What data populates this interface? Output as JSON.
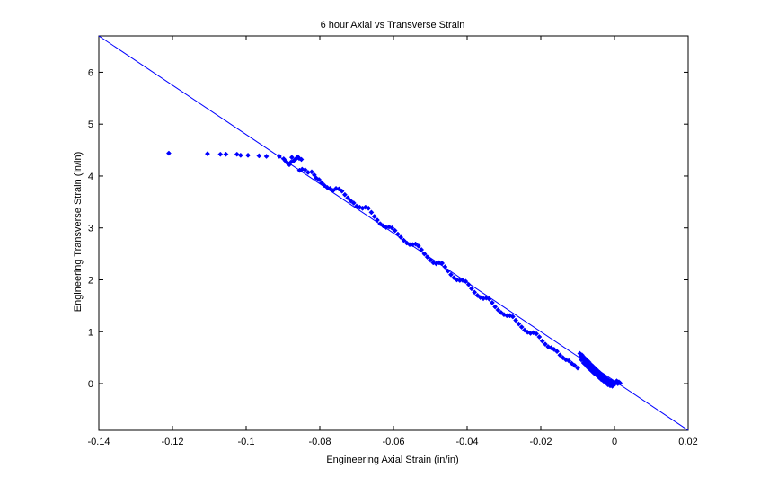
{
  "chart_data": {
    "type": "scatter",
    "title": "6 hour Axial vs Transverse Strain",
    "xlabel": "Engineering Axial Strain (in/in)",
    "ylabel": "Engineering Transverse Strain (in/in)",
    "xlim": [
      -0.14,
      0.02
    ],
    "ylim": [
      -0.9,
      6.7
    ],
    "xticks": [
      "-0.14",
      "-0.12",
      "-0.1",
      "-0.08",
      "-0.06",
      "-0.04",
      "-0.02",
      "0",
      "0.02"
    ],
    "yticks": [
      "0",
      "1",
      "2",
      "3",
      "4",
      "5",
      "6"
    ],
    "grid": false,
    "marker_color": "#0000ff",
    "fit_line": {
      "x": [
        -0.14,
        0.02
      ],
      "y": [
        6.7,
        -0.9
      ],
      "color": "#0000ff"
    },
    "series": [
      {
        "points": [
          [
            -0.121,
            4.44
          ],
          [
            -0.1105,
            4.43
          ],
          [
            -0.107,
            4.42
          ],
          [
            -0.1055,
            4.42
          ],
          [
            -0.1025,
            4.42
          ],
          [
            -0.1015,
            4.4
          ],
          [
            -0.0995,
            4.4
          ],
          [
            -0.0965,
            4.39
          ],
          [
            -0.0945,
            4.38
          ],
          [
            -0.091,
            4.38
          ],
          [
            -0.0898,
            4.33
          ],
          [
            -0.0893,
            4.29
          ],
          [
            -0.0888,
            4.25
          ],
          [
            -0.0883,
            4.22
          ],
          [
            -0.0878,
            4.27
          ],
          [
            -0.0876,
            4.36
          ],
          [
            -0.087,
            4.3
          ],
          [
            -0.0865,
            4.33
          ],
          [
            -0.086,
            4.37
          ],
          [
            -0.0856,
            4.34
          ],
          [
            -0.085,
            4.32
          ],
          [
            -0.0855,
            4.11
          ],
          [
            -0.0848,
            4.13
          ],
          [
            -0.084,
            4.12
          ],
          [
            -0.0832,
            4.07
          ],
          [
            -0.0822,
            4.08
          ],
          [
            -0.0815,
            4.02
          ],
          [
            -0.081,
            3.96
          ],
          [
            -0.0802,
            3.93
          ],
          [
            -0.0795,
            3.87
          ],
          [
            -0.0788,
            3.82
          ],
          [
            -0.078,
            3.78
          ],
          [
            -0.0772,
            3.76
          ],
          [
            -0.0764,
            3.72
          ],
          [
            -0.0756,
            3.76
          ],
          [
            -0.0748,
            3.75
          ],
          [
            -0.074,
            3.71
          ],
          [
            -0.0732,
            3.64
          ],
          [
            -0.0724,
            3.58
          ],
          [
            -0.0716,
            3.52
          ],
          [
            -0.0708,
            3.48
          ],
          [
            -0.07,
            3.42
          ],
          [
            -0.0692,
            3.4
          ],
          [
            -0.0684,
            3.38
          ],
          [
            -0.0676,
            3.4
          ],
          [
            -0.0668,
            3.38
          ],
          [
            -0.066,
            3.3
          ],
          [
            -0.0652,
            3.22
          ],
          [
            -0.0644,
            3.15
          ],
          [
            -0.0636,
            3.08
          ],
          [
            -0.0628,
            3.04
          ],
          [
            -0.062,
            3.01
          ],
          [
            -0.0612,
            3.02
          ],
          [
            -0.0604,
            3.0
          ],
          [
            -0.0596,
            2.95
          ],
          [
            -0.0588,
            2.88
          ],
          [
            -0.058,
            2.82
          ],
          [
            -0.0572,
            2.76
          ],
          [
            -0.0564,
            2.71
          ],
          [
            -0.0556,
            2.68
          ],
          [
            -0.0548,
            2.68
          ],
          [
            -0.054,
            2.69
          ],
          [
            -0.0532,
            2.65
          ],
          [
            -0.0524,
            2.58
          ],
          [
            -0.0516,
            2.5
          ],
          [
            -0.0508,
            2.44
          ],
          [
            -0.05,
            2.38
          ],
          [
            -0.0492,
            2.33
          ],
          [
            -0.0484,
            2.31
          ],
          [
            -0.0476,
            2.33
          ],
          [
            -0.0468,
            2.32
          ],
          [
            -0.046,
            2.25
          ],
          [
            -0.0452,
            2.17
          ],
          [
            -0.0444,
            2.1
          ],
          [
            -0.0436,
            2.04
          ],
          [
            -0.0428,
            2.0
          ],
          [
            -0.042,
            1.99
          ],
          [
            -0.0412,
            1.99
          ],
          [
            -0.0404,
            1.97
          ],
          [
            -0.0396,
            1.91
          ],
          [
            -0.0388,
            1.83
          ],
          [
            -0.038,
            1.76
          ],
          [
            -0.0372,
            1.7
          ],
          [
            -0.0364,
            1.66
          ],
          [
            -0.0356,
            1.64
          ],
          [
            -0.0348,
            1.65
          ],
          [
            -0.034,
            1.63
          ],
          [
            -0.0332,
            1.56
          ],
          [
            -0.0324,
            1.48
          ],
          [
            -0.0316,
            1.42
          ],
          [
            -0.0308,
            1.37
          ],
          [
            -0.03,
            1.33
          ],
          [
            -0.0292,
            1.31
          ],
          [
            -0.0284,
            1.31
          ],
          [
            -0.0276,
            1.29
          ],
          [
            -0.0268,
            1.22
          ],
          [
            -0.026,
            1.15
          ],
          [
            -0.0252,
            1.09
          ],
          [
            -0.0244,
            1.03
          ],
          [
            -0.0236,
            0.99
          ],
          [
            -0.0228,
            0.97
          ],
          [
            -0.022,
            0.98
          ],
          [
            -0.0212,
            0.96
          ],
          [
            -0.0204,
            0.9
          ],
          [
            -0.0196,
            0.82
          ],
          [
            -0.0188,
            0.76
          ],
          [
            -0.018,
            0.71
          ],
          [
            -0.0172,
            0.69
          ],
          [
            -0.0164,
            0.66
          ],
          [
            -0.0156,
            0.62
          ],
          [
            -0.0148,
            0.55
          ],
          [
            -0.014,
            0.5
          ],
          [
            -0.0132,
            0.46
          ],
          [
            -0.0124,
            0.44
          ],
          [
            -0.0116,
            0.39
          ],
          [
            -0.0108,
            0.35
          ],
          [
            -0.01,
            0.3
          ],
          [
            -0.0094,
            0.58
          ],
          [
            -0.0092,
            0.52
          ],
          [
            -0.009,
            0.46
          ],
          [
            -0.0088,
            0.55
          ],
          [
            -0.0086,
            0.48
          ],
          [
            -0.0084,
            0.4
          ],
          [
            -0.0082,
            0.5
          ],
          [
            -0.008,
            0.43
          ],
          [
            -0.0078,
            0.36
          ],
          [
            -0.0076,
            0.46
          ],
          [
            -0.0074,
            0.38
          ],
          [
            -0.0072,
            0.31
          ],
          [
            -0.007,
            0.42
          ],
          [
            -0.0068,
            0.34
          ],
          [
            -0.0066,
            0.27
          ],
          [
            -0.0064,
            0.37
          ],
          [
            -0.0062,
            0.3
          ],
          [
            -0.006,
            0.23
          ],
          [
            -0.0058,
            0.33
          ],
          [
            -0.0056,
            0.26
          ],
          [
            -0.0054,
            0.19
          ],
          [
            -0.0052,
            0.29
          ],
          [
            -0.005,
            0.22
          ],
          [
            -0.0048,
            0.16
          ],
          [
            -0.0046,
            0.25
          ],
          [
            -0.0044,
            0.18
          ],
          [
            -0.0042,
            0.12
          ],
          [
            -0.004,
            0.21
          ],
          [
            -0.0038,
            0.14
          ],
          [
            -0.0036,
            0.08
          ],
          [
            -0.0034,
            0.17
          ],
          [
            -0.0032,
            0.11
          ],
          [
            -0.003,
            0.05
          ],
          [
            -0.0028,
            0.14
          ],
          [
            -0.0026,
            0.07
          ],
          [
            -0.0024,
            0.02
          ],
          [
            -0.0022,
            0.1
          ],
          [
            -0.002,
            0.04
          ],
          [
            -0.0018,
            -0.02
          ],
          [
            -0.0016,
            0.07
          ],
          [
            -0.0014,
            0.01
          ],
          [
            -0.0012,
            -0.04
          ],
          [
            -0.001,
            0.05
          ],
          [
            -0.0008,
            -0.01
          ],
          [
            -0.0006,
            -0.05
          ],
          [
            -0.0004,
            0.03
          ],
          [
            -0.0002,
            -0.03
          ],
          [
            0.0,
            0.0
          ],
          [
            0.0003,
            0.02
          ],
          [
            0.0006,
            0.05
          ],
          [
            0.0009,
            0.0
          ],
          [
            0.0012,
            0.03
          ],
          [
            0.0015,
            0.01
          ]
        ]
      }
    ]
  }
}
